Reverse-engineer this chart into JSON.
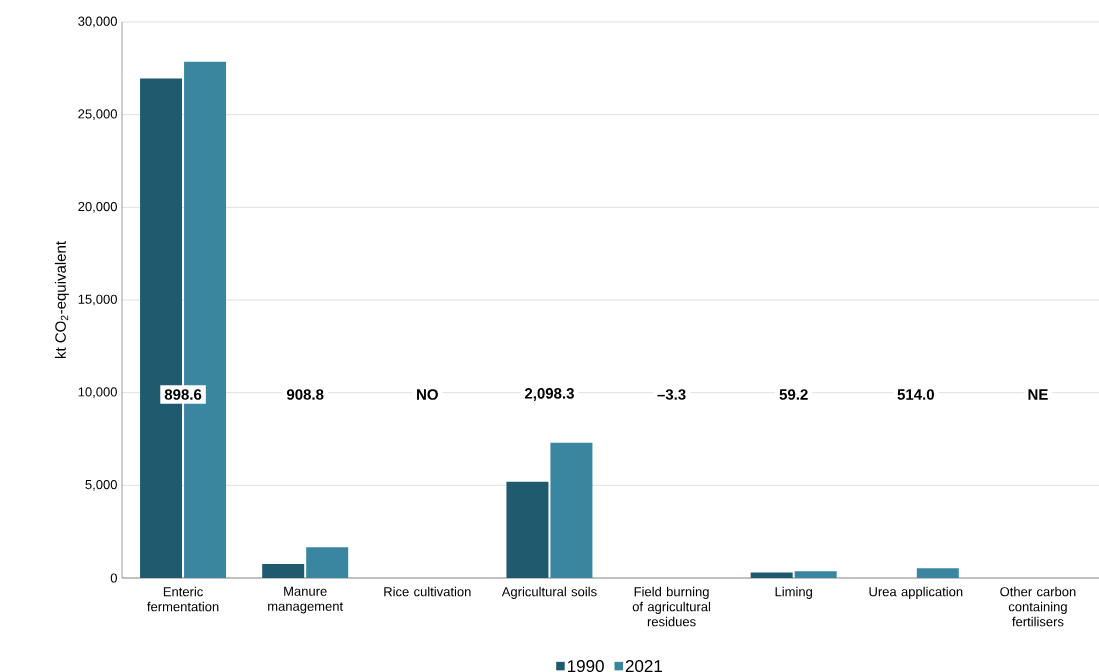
{
  "chart_data": {
    "type": "bar",
    "ylabel": "kt CO$_{2}$-equivalent",
    "categories": [
      "Enteric fermentation",
      "Manure management",
      "Rice cultivation",
      "Agricultural soils",
      "Field burning of agricultural residues",
      "Liming",
      "Urea application",
      "Other carbon containing fertilisers"
    ],
    "series": [
      {
        "name": "1990",
        "color": "#1f5a6e",
        "values": [
          26950,
          750,
          null,
          5200,
          null,
          300,
          null,
          null
        ]
      },
      {
        "name": "2021",
        "color": "#3a86a0",
        "values": [
          27850,
          1660,
          null,
          7300,
          null,
          360,
          530,
          null
        ]
      }
    ],
    "ylim": [
      0,
      30000
    ],
    "yticks": [
      {
        "value": 0,
        "label": "0"
      },
      {
        "value": 5000,
        "label": "5,000"
      },
      {
        "value": 10000,
        "label": "10,000"
      },
      {
        "value": 15000,
        "label": "15,000"
      },
      {
        "value": 20000,
        "label": "20,000"
      },
      {
        "value": 25000,
        "label": "25,000"
      },
      {
        "value": 30000,
        "label": "30,000"
      }
    ],
    "annotations": [
      "898.6",
      "908.8",
      "NO",
      "2,098.3",
      "–3.3",
      "59.2",
      "514.0",
      "NE"
    ],
    "grid": "y",
    "legend": "bottom"
  }
}
